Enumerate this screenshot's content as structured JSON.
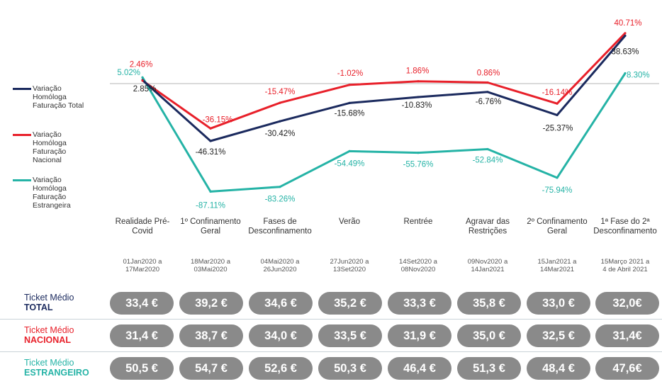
{
  "chart_data": {
    "type": "line",
    "categories": [
      "Realidade Pré-Covid",
      "1º Confinamento Geral",
      "Fases de Desconfinamento",
      "Verão",
      "Rentrée",
      "Agravar das Restrições",
      "2º Confinamento Geral",
      "1ª Fase do 2ª Desconfinamento"
    ],
    "periods": [
      "01Jan2020 a 17Mar2020",
      "18Mar2020 a 03Mai2020",
      "04Mai2020 a 26Jun2020",
      "27Jun2020 a 13Set2020",
      "14Set2020 a 08Nov2020",
      "09Nov2020 a 14Jan2021",
      "15Jan2021 a 14Mar2021",
      "15Março 2021 a 4 de Abril 2021"
    ],
    "series": [
      {
        "name": "Variação Homóloga Faturação Total",
        "color": "#1b2a5e",
        "values": [
          2.85,
          -46.31,
          -30.42,
          -15.68,
          -10.83,
          -6.76,
          -25.37,
          38.63
        ],
        "labels": [
          "2.85%",
          "-46.31%",
          "-30.42%",
          "-15.68%",
          "-10.83%",
          "-6.76%",
          "-25.37%",
          "38.63%"
        ]
      },
      {
        "name": "Variação Homóloga Faturação Nacional",
        "color": "#e8202a",
        "values": [
          2.46,
          -36.15,
          -15.47,
          -1.02,
          1.86,
          0.86,
          -16.14,
          40.71
        ],
        "labels": [
          "2.46%",
          "-36.15%",
          "-15.47%",
          "-1.02%",
          "1.86%",
          "0.86%",
          "-16.14%",
          "40.71%"
        ]
      },
      {
        "name": "Variação Homóloga Faturação Estrangeira",
        "color": "#25b3a6",
        "values": [
          5.02,
          -87.11,
          -83.26,
          -54.49,
          -55.76,
          -52.84,
          -75.94,
          8.3
        ],
        "labels": [
          "5.02%",
          "-87.11%",
          "-83.26%",
          "-54.49%",
          "-55.76%",
          "-52.84%",
          "-75.94%",
          "8.30%"
        ]
      }
    ],
    "legend_labels": [
      [
        "Variação",
        "Homóloga",
        "Faturação Total"
      ],
      [
        "Variação",
        "Homóloga",
        "Faturação",
        "Nacional"
      ],
      [
        "Variação",
        "Homóloga",
        "Faturação",
        "Estrangeira"
      ]
    ],
    "legend_position": "left",
    "baseline": 0,
    "ylim": [
      -95,
      45
    ],
    "grid": false
  },
  "tickets": [
    {
      "label": "Ticket Médio",
      "sub": "TOTAL",
      "color": "#1b2a5e",
      "values": [
        "33,4 €",
        "39,2 €",
        "34,6 €",
        "35,2 €",
        "33,3 €",
        "35,8 €",
        "33,0 €",
        "32,0€"
      ]
    },
    {
      "label": "Ticket Médio",
      "sub": "NACIONAL",
      "color": "#e8202a",
      "values": [
        "31,4 €",
        "38,7 €",
        "34,0 €",
        "33,5 €",
        "31,9 €",
        "35,0 €",
        "32,5 €",
        "31,4€"
      ]
    },
    {
      "label": "Ticket Médio",
      "sub": "ESTRANGEIRO",
      "color": "#25b3a6",
      "values": [
        "50,5 €",
        "54,7 €",
        "52,6 €",
        "50,3 €",
        "46,4 €",
        "51,3 €",
        "48,4 €",
        "47,6€"
      ]
    }
  ]
}
